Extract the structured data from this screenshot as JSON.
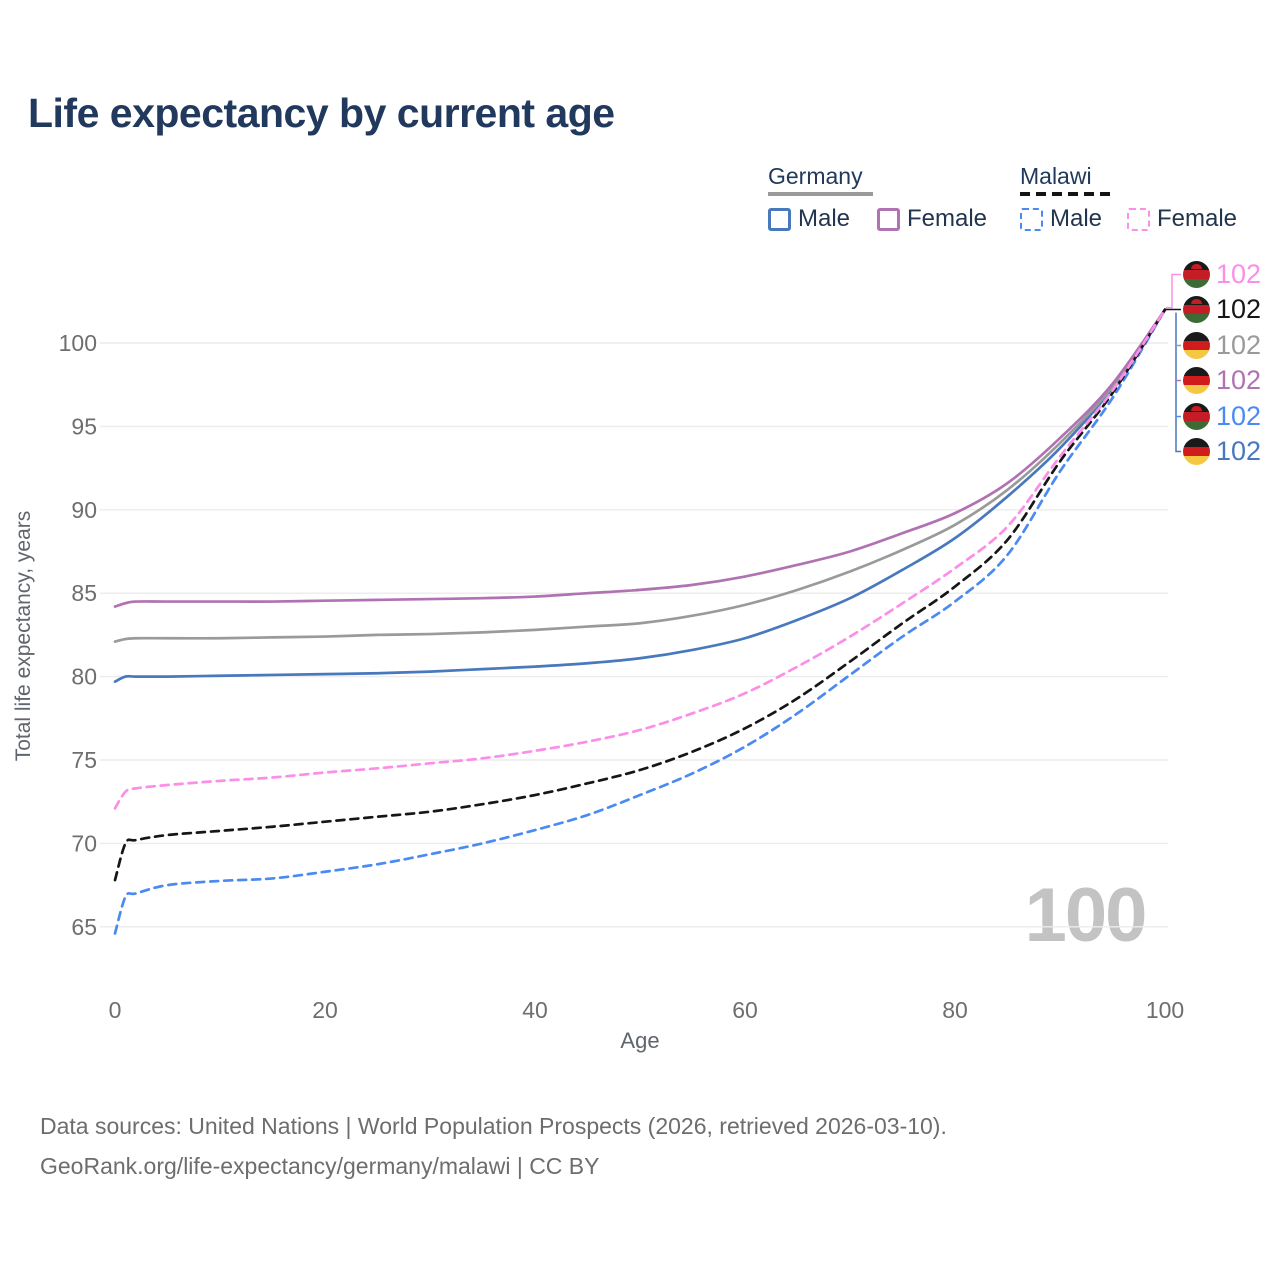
{
  "title": "Life expectancy by current age",
  "legend": {
    "groups": [
      {
        "name": "Germany",
        "line_style": "solid",
        "underline_color": "#9a9a9a",
        "items": [
          {
            "label": "Male",
            "color": "#4878bd"
          },
          {
            "label": "Female",
            "color": "#b072b2"
          }
        ]
      },
      {
        "name": "Malawi",
        "line_style": "dashed",
        "underline_color": "#141414",
        "items": [
          {
            "label": "Male",
            "color": "#4a8af2"
          },
          {
            "label": "Female",
            "color": "#fb8fe8"
          }
        ]
      }
    ]
  },
  "chart_data": {
    "type": "line",
    "title": "Life expectancy by current age",
    "xlabel": "Age",
    "ylabel": "Total life expectancy, years",
    "x_ticks": [
      0,
      20,
      40,
      60,
      80,
      100
    ],
    "y_ticks": [
      65,
      70,
      75,
      80,
      85,
      90,
      95,
      100
    ],
    "xlim": [
      0,
      100
    ],
    "ylim": [
      63,
      103
    ],
    "grid": true,
    "x": [
      0,
      1,
      2,
      5,
      10,
      15,
      20,
      25,
      30,
      35,
      40,
      45,
      50,
      55,
      60,
      65,
      70,
      75,
      80,
      85,
      90,
      95,
      100
    ],
    "series": [
      {
        "name": "Germany Male",
        "country": "Germany",
        "sex": "male",
        "color": "#4878bd",
        "dash": false,
        "values": [
          79.7,
          80.0,
          80.0,
          80.0,
          80.05,
          80.1,
          80.15,
          80.2,
          80.3,
          80.45,
          80.6,
          80.8,
          81.1,
          81.6,
          82.3,
          83.4,
          84.7,
          86.4,
          88.3,
          90.8,
          93.7,
          97.3,
          102
        ]
      },
      {
        "name": "Germany",
        "country": "Germany",
        "sex": "total",
        "color": "#9a9a9a",
        "dash": false,
        "values": [
          82.1,
          82.25,
          82.3,
          82.3,
          82.3,
          82.35,
          82.4,
          82.5,
          82.55,
          82.65,
          82.8,
          83.0,
          83.2,
          83.65,
          84.3,
          85.2,
          86.3,
          87.6,
          89.1,
          91.2,
          94.0,
          97.4,
          102
        ]
      },
      {
        "name": "Germany Female",
        "country": "Germany",
        "sex": "female",
        "color": "#b072b2",
        "dash": false,
        "values": [
          84.2,
          84.4,
          84.5,
          84.5,
          84.5,
          84.5,
          84.55,
          84.6,
          84.65,
          84.7,
          84.8,
          85.0,
          85.2,
          85.5,
          86.0,
          86.7,
          87.5,
          88.6,
          89.8,
          91.6,
          94.3,
          97.55,
          102
        ]
      },
      {
        "name": "Malawi Male",
        "country": "Malawi",
        "sex": "male",
        "color": "#4a8af2",
        "dash": true,
        "values": [
          64.6,
          66.8,
          67.0,
          67.5,
          67.75,
          67.9,
          68.3,
          68.75,
          69.35,
          70.0,
          70.8,
          71.7,
          72.9,
          74.2,
          75.8,
          77.8,
          80.1,
          82.4,
          84.5,
          87.3,
          92.3,
          96.7,
          102
        ]
      },
      {
        "name": "Malawi",
        "country": "Malawi",
        "sex": "total",
        "color": "#161616",
        "dash": true,
        "values": [
          67.8,
          70.0,
          70.2,
          70.5,
          70.75,
          71.0,
          71.3,
          71.6,
          71.9,
          72.35,
          72.9,
          73.6,
          74.4,
          75.5,
          76.9,
          78.7,
          80.9,
          83.2,
          85.4,
          88.2,
          92.9,
          97.0,
          102
        ]
      },
      {
        "name": "Malawi Female",
        "country": "Malawi",
        "sex": "female",
        "color": "#fb8fe8",
        "dash": true,
        "values": [
          72.1,
          73.1,
          73.3,
          73.5,
          73.75,
          73.95,
          74.25,
          74.5,
          74.8,
          75.1,
          75.55,
          76.1,
          76.8,
          77.8,
          79.0,
          80.6,
          82.4,
          84.4,
          86.5,
          89.0,
          93.2,
          97.15,
          102
        ]
      }
    ],
    "end_labels": [
      {
        "flag": "malawi",
        "value": "102",
        "color": "#fb8fe8",
        "series": "Malawi Female"
      },
      {
        "flag": "malawi",
        "value": "102",
        "color": "#161616",
        "series": "Malawi"
      },
      {
        "flag": "germany",
        "value": "102",
        "color": "#9a9a9a",
        "series": "Germany"
      },
      {
        "flag": "germany",
        "value": "102",
        "color": "#b072b2",
        "series": "Germany Female"
      },
      {
        "flag": "malawi",
        "value": "102",
        "color": "#4a8af2",
        "series": "Malawi Male"
      },
      {
        "flag": "germany",
        "value": "102",
        "color": "#4878bd",
        "series": "Germany Male"
      }
    ],
    "age_indicator": "100",
    "legend_position": "top-right"
  },
  "footer": {
    "line1": "Data sources: United Nations | World Population Prospects (2026, retrieved 2026-03-10).",
    "line2": "GeoRank.org/life-expectancy/germany/malawi | CC BY"
  }
}
